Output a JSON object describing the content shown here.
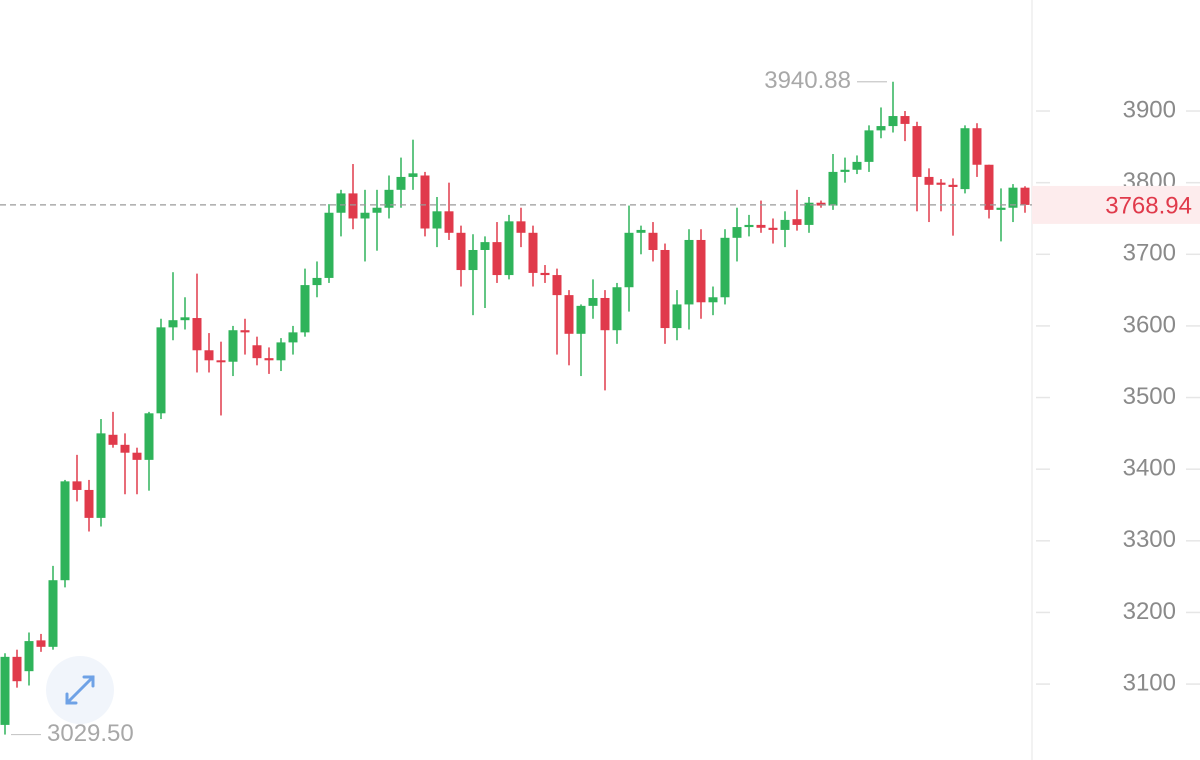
{
  "chart_data": {
    "type": "candlestick",
    "up_color": "#2fb35a",
    "down_color": "#e03a4b",
    "ylim": [
      2994,
      4055
    ],
    "yticks": [
      3100,
      3200,
      3300,
      3400,
      3500,
      3600,
      3700,
      3800,
      3900
    ],
    "max_label": {
      "value": 3940.88,
      "label": "3940.88"
    },
    "min_label": {
      "value": 3029.5,
      "label": "3029.50"
    },
    "open": [
      3043,
      3138,
      3118,
      3161,
      3152,
      3245,
      3383,
      3371,
      3332,
      3448,
      3434,
      3423,
      3413,
      3478,
      3598,
      3608,
      3611,
      3566,
      3552,
      3550,
      3594,
      3573,
      3555,
      3552,
      3577,
      3591,
      3657,
      3667,
      3758,
      3785,
      3750,
      3758,
      3765,
      3790,
      3808,
      3810,
      3736,
      3760,
      3730,
      3678,
      3706,
      3717,
      3671,
      3746,
      3730,
      3674,
      3671,
      3643,
      3589,
      3628,
      3639,
      3594,
      3654,
      3730,
      3730,
      3706,
      3597,
      3630,
      3720,
      3633,
      3640,
      3723,
      3738,
      3741,
      3737,
      3734,
      3749,
      3741,
      3772,
      3768,
      3815,
      3818,
      3829,
      3873,
      3879,
      3893,
      3879,
      3808,
      3800,
      3797,
      3791,
      3876,
      3825,
      3762,
      3765,
      3793
    ],
    "high": [
      3143,
      3148,
      3172,
      3170,
      3265,
      3385,
      3420,
      3385,
      3470,
      3480,
      3450,
      3430,
      3480,
      3610,
      3675,
      3640,
      3673,
      3590,
      3578,
      3600,
      3610,
      3585,
      3570,
      3583,
      3600,
      3680,
      3690,
      3770,
      3790,
      3826,
      3790,
      3790,
      3810,
      3835,
      3860,
      3815,
      3780,
      3800,
      3740,
      3728,
      3725,
      3745,
      3755,
      3765,
      3740,
      3685,
      3680,
      3650,
      3630,
      3665,
      3650,
      3660,
      3768,
      3740,
      3745,
      3715,
      3650,
      3735,
      3735,
      3655,
      3735,
      3765,
      3755,
      3775,
      3750,
      3760,
      3790,
      3780,
      3775,
      3840,
      3835,
      3838,
      3880,
      3905,
      3940.88,
      3900,
      3885,
      3820,
      3805,
      3806,
      3880,
      3883,
      3825,
      3792,
      3798,
      3795
    ],
    "low": [
      3029.5,
      3095,
      3098,
      3145,
      3148,
      3235,
      3355,
      3313,
      3320,
      3430,
      3365,
      3365,
      3370,
      3470,
      3580,
      3595,
      3535,
      3535,
      3475,
      3530,
      3560,
      3545,
      3533,
      3537,
      3560,
      3585,
      3640,
      3660,
      3725,
      3735,
      3690,
      3705,
      3750,
      3765,
      3790,
      3725,
      3710,
      3720,
      3655,
      3615,
      3625,
      3660,
      3665,
      3710,
      3655,
      3660,
      3560,
      3545,
      3530,
      3610,
      3510,
      3575,
      3620,
      3700,
      3690,
      3575,
      3580,
      3595,
      3610,
      3615,
      3630,
      3690,
      3725,
      3730,
      3715,
      3710,
      3733,
      3730,
      3765,
      3762,
      3800,
      3812,
      3815,
      3862,
      3870,
      3858,
      3760,
      3745,
      3760,
      3726,
      3785,
      3808,
      3750,
      3718,
      3745,
      3758
    ],
    "close": [
      3138,
      3104,
      3160,
      3152,
      3245,
      3383,
      3371,
      3332,
      3450,
      3434,
      3423,
      3413,
      3478,
      3598,
      3608,
      3612,
      3566,
      3552,
      3550,
      3594,
      3591,
      3555,
      3552,
      3577,
      3591,
      3657,
      3667,
      3758,
      3785,
      3750,
      3758,
      3765,
      3790,
      3808,
      3813,
      3736,
      3760,
      3730,
      3678,
      3706,
      3717,
      3671,
      3746,
      3730,
      3674,
      3671,
      3643,
      3589,
      3628,
      3639,
      3594,
      3654,
      3730,
      3734,
      3706,
      3597,
      3630,
      3720,
      3633,
      3640,
      3723,
      3738,
      3741,
      3737,
      3734,
      3748,
      3741,
      3772,
      3768,
      3815,
      3818,
      3829,
      3873,
      3879,
      3893,
      3882,
      3808,
      3797,
      3797,
      3794,
      3876,
      3825,
      3762,
      3765,
      3793,
      3768.94
    ]
  }
}
